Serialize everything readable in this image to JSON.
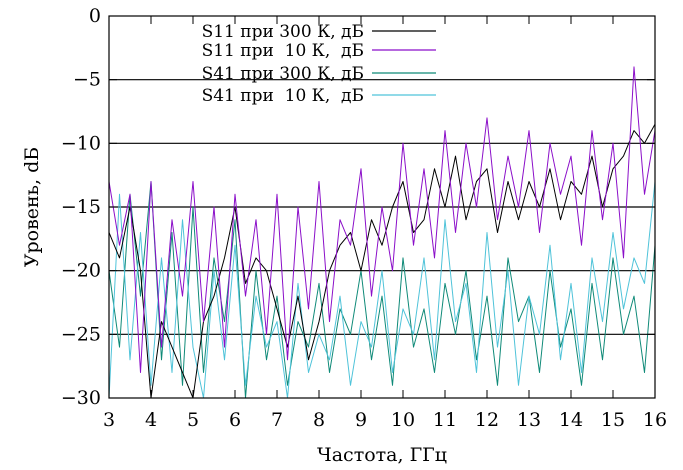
{
  "chart_data": {
    "type": "line",
    "xlabel": "Частота, ГГц",
    "ylabel": "Уровень, dБ",
    "xlim": [
      3,
      16
    ],
    "ylim": [
      -30,
      0
    ],
    "x_ticks": [
      "3",
      "4",
      "5",
      "6",
      "7",
      "8",
      "9",
      "10",
      "11",
      "12",
      "13",
      "14",
      "15",
      "16"
    ],
    "y_ticks": [
      "0",
      "−5",
      "−10",
      "−15",
      "−20",
      "−25",
      "−30"
    ],
    "grid": "horizontal",
    "legend_position": "top-left",
    "series": [
      {
        "name": "S11 при 300 К, дБ",
        "color": "#000000",
        "x": [
          3.0,
          3.25,
          3.5,
          3.75,
          4.0,
          4.25,
          4.5,
          4.75,
          5.0,
          5.25,
          5.5,
          5.75,
          6.0,
          6.25,
          6.5,
          6.75,
          7.0,
          7.25,
          7.5,
          7.75,
          8.0,
          8.25,
          8.5,
          8.75,
          9.0,
          9.25,
          9.5,
          9.75,
          10.0,
          10.25,
          10.5,
          10.75,
          11.0,
          11.25,
          11.5,
          11.75,
          12.0,
          12.25,
          12.5,
          12.75,
          13.0,
          13.25,
          13.5,
          13.75,
          14.0,
          14.25,
          14.5,
          14.75,
          15.0,
          15.25,
          15.5,
          15.75,
          16.0
        ],
        "values": [
          -17,
          -19,
          -15,
          -20,
          -30,
          -24,
          -26,
          -28,
          -30,
          -24,
          -22,
          -19,
          -15,
          -21,
          -19,
          -20,
          -23,
          -26,
          -22,
          -27,
          -24,
          -20,
          -18,
          -17,
          -20,
          -16,
          -18,
          -15,
          -13,
          -17,
          -16,
          -12,
          -15,
          -11,
          -16,
          -13,
          -12,
          -17,
          -13,
          -16,
          -13,
          -15,
          -12,
          -16,
          -13,
          -14,
          -11,
          -15,
          -12,
          -11,
          -9,
          -10,
          -8.5
        ]
      },
      {
        "name": "S11 при  10 К,  дБ",
        "color": "#8b0fc9",
        "x": [
          3.0,
          3.25,
          3.5,
          3.75,
          4.0,
          4.25,
          4.5,
          4.75,
          5.0,
          5.25,
          5.5,
          5.75,
          6.0,
          6.25,
          6.5,
          6.75,
          7.0,
          7.25,
          7.5,
          7.75,
          8.0,
          8.25,
          8.5,
          8.75,
          9.0,
          9.25,
          9.5,
          9.75,
          10.0,
          10.25,
          10.5,
          10.75,
          11.0,
          11.25,
          11.5,
          11.75,
          12.0,
          12.25,
          12.5,
          12.75,
          13.0,
          13.25,
          13.5,
          13.75,
          14.0,
          14.25,
          14.5,
          14.75,
          15.0,
          15.25,
          15.5,
          15.75,
          16.0
        ],
        "values": [
          -13,
          -18,
          -14,
          -28,
          -13,
          -26,
          -16,
          -22,
          -13,
          -24,
          -15,
          -26,
          -14,
          -22,
          -16,
          -25,
          -14,
          -27,
          -15,
          -23,
          -13,
          -24,
          -16,
          -18,
          -12,
          -22,
          -15,
          -20,
          -10,
          -18,
          -12,
          -19,
          -9,
          -17,
          -10,
          -15,
          -8,
          -16,
          -11,
          -15,
          -9,
          -17,
          -10,
          -14,
          -11,
          -18,
          -9,
          -16,
          -10,
          -19,
          -4,
          -14,
          -9
        ]
      },
      {
        "name": "S41 при 300 К, дБ",
        "color": "#0f8a78",
        "x": [
          3.0,
          3.25,
          3.5,
          3.75,
          4.0,
          4.25,
          4.5,
          4.75,
          5.0,
          5.25,
          5.5,
          5.75,
          6.0,
          6.25,
          6.5,
          6.75,
          7.0,
          7.25,
          7.5,
          7.75,
          8.0,
          8.25,
          8.5,
          8.75,
          9.0,
          9.25,
          9.5,
          9.75,
          10.0,
          10.25,
          10.5,
          10.75,
          11.0,
          11.25,
          11.5,
          11.75,
          12.0,
          12.25,
          12.5,
          12.75,
          13.0,
          13.25,
          13.5,
          13.75,
          14.0,
          14.25,
          14.5,
          14.75,
          15.0,
          15.25,
          15.5,
          15.75,
          16.0
        ],
        "values": [
          -20,
          -26,
          -14,
          -22,
          -13,
          -27,
          -17,
          -29,
          -15,
          -28,
          -19,
          -24,
          -16,
          -30,
          -20,
          -27,
          -22,
          -29,
          -24,
          -26,
          -21,
          -28,
          -23,
          -25,
          -20,
          -27,
          -22,
          -29,
          -19,
          -26,
          -23,
          -28,
          -21,
          -25,
          -20,
          -27,
          -22,
          -29,
          -19,
          -24,
          -22,
          -28,
          -20,
          -26,
          -23,
          -29,
          -21,
          -27,
          -19,
          -25,
          -22,
          -28,
          -18
        ]
      },
      {
        "name": "S41 при  10 К,  дБ",
        "color": "#4fc3d9",
        "x": [
          3.0,
          3.25,
          3.5,
          3.75,
          4.0,
          4.25,
          4.5,
          4.75,
          5.0,
          5.25,
          5.5,
          5.75,
          6.0,
          6.25,
          6.5,
          6.75,
          7.0,
          7.25,
          7.5,
          7.75,
          8.0,
          8.25,
          8.5,
          8.75,
          9.0,
          9.25,
          9.5,
          9.75,
          10.0,
          10.25,
          10.5,
          10.75,
          11.0,
          11.25,
          11.5,
          11.75,
          12.0,
          12.25,
          12.5,
          12.75,
          13.0,
          13.25,
          13.5,
          13.75,
          14.0,
          14.25,
          14.5,
          14.75,
          15.0,
          15.25,
          15.5,
          15.75,
          16.0
        ],
        "values": [
          -30,
          -14,
          -27,
          -17,
          -29,
          -19,
          -28,
          -16,
          -26,
          -30,
          -20,
          -27,
          -18,
          -29,
          -22,
          -26,
          -24,
          -30,
          -21,
          -28,
          -25,
          -27,
          -22,
          -29,
          -24,
          -26,
          -20,
          -28,
          -23,
          -25,
          -19,
          -27,
          -16,
          -24,
          -21,
          -28,
          -17,
          -26,
          -20,
          -29,
          -22,
          -25,
          -18,
          -27,
          -21,
          -28,
          -19,
          -24,
          -17,
          -23,
          -19,
          -21,
          -13
        ]
      }
    ]
  }
}
